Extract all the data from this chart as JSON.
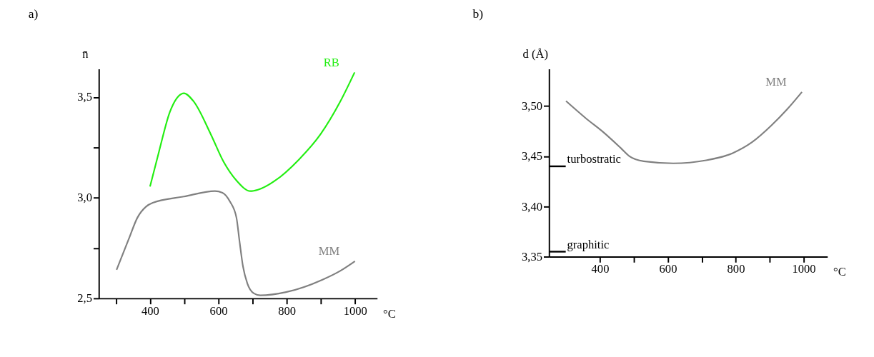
{
  "chart_data": [
    {
      "type": "line",
      "title": "a)",
      "xlabel": "°C",
      "ylabel": "n̄",
      "xlim": [
        250,
        1065
      ],
      "ylim": [
        2.5,
        3.64
      ],
      "xticks": [
        {
          "value": 300,
          "label": null
        },
        {
          "value": 400,
          "label": "400"
        },
        {
          "value": 500,
          "label": null
        },
        {
          "value": 600,
          "label": "600"
        },
        {
          "value": 700,
          "label": null
        },
        {
          "value": 800,
          "label": "800"
        },
        {
          "value": 900,
          "label": null
        },
        {
          "value": 1000,
          "label": "1000"
        }
      ],
      "yticks": [
        {
          "value": 2.5,
          "label": "2,5"
        },
        {
          "value": 2.75,
          "label": null
        },
        {
          "value": 3.0,
          "label": "3,0"
        },
        {
          "value": 3.25,
          "label": null
        },
        {
          "value": 3.5,
          "label": "3,5"
        }
      ],
      "grid": false,
      "legend": false,
      "marker": "none",
      "line_style": "solid",
      "series": [
        {
          "name": "RB",
          "color": "#22ee11",
          "x": [
            400,
            426,
            458,
            499,
            527,
            578,
            615,
            653,
            694,
            716,
            767,
            836,
            899,
            956,
            999
          ],
          "values": [
            3.056,
            3.228,
            3.426,
            3.519,
            3.48,
            3.315,
            3.18,
            3.086,
            3.033,
            3.04,
            3.086,
            3.19,
            3.315,
            3.475,
            3.623
          ]
        },
        {
          "name": "MM",
          "color": "#808080",
          "x": [
            302,
            338,
            363,
            389,
            408,
            499,
            590,
            612,
            634,
            653,
            662,
            672,
            685,
            704,
            723,
            798,
            905,
            956,
            1000
          ],
          "values": [
            2.642,
            2.796,
            2.901,
            2.957,
            2.975,
            3.006,
            3.033,
            3.025,
            2.981,
            2.901,
            2.784,
            2.66,
            2.574,
            2.525,
            2.515,
            2.531,
            2.593,
            2.636,
            2.685
          ]
        }
      ]
    },
    {
      "type": "line",
      "title": "b)",
      "xlabel": "°C",
      "ylabel": "d (Å)",
      "xlim": [
        250,
        1070
      ],
      "ylim": [
        3.35,
        3.537
      ],
      "xticks": [
        {
          "value": 400,
          "label": "400"
        },
        {
          "value": 500,
          "label": null
        },
        {
          "value": 600,
          "label": "600"
        },
        {
          "value": 700,
          "label": null
        },
        {
          "value": 800,
          "label": "800"
        },
        {
          "value": 900,
          "label": null
        },
        {
          "value": 1000,
          "label": "1000"
        }
      ],
      "yticks": [
        {
          "value": 3.35,
          "label": "3,35"
        },
        {
          "value": 3.4,
          "label": "3,40"
        },
        {
          "value": 3.45,
          "label": "3,45"
        },
        {
          "value": 3.5,
          "label": "3,50"
        }
      ],
      "grid": false,
      "legend": false,
      "marker": "none",
      "line_style": "solid",
      "ref_lines": [
        {
          "axis": "y",
          "value": 3.44,
          "label": "turbostratic"
        },
        {
          "axis": "y",
          "value": 3.355,
          "label": "graphitic"
        }
      ],
      "series": [
        {
          "name": "MM",
          "color": "#808080",
          "x": [
            300,
            358,
            410,
            462,
            487,
            529,
            616,
            713,
            790,
            848,
            906,
            952,
            995
          ],
          "values": [
            3.505,
            3.488,
            3.474,
            3.458,
            3.45,
            3.445,
            3.443,
            3.446,
            3.453,
            3.464,
            3.481,
            3.497,
            3.514
          ]
        }
      ]
    }
  ]
}
